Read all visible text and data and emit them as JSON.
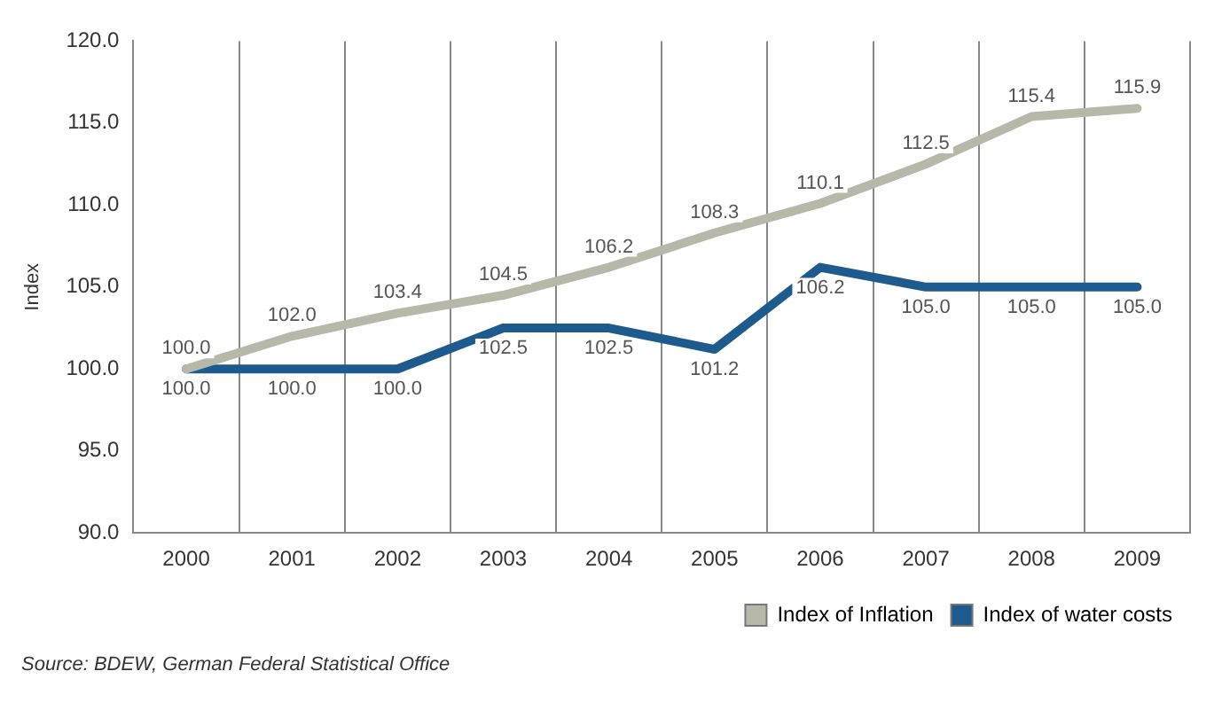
{
  "chart_data": {
    "type": "line",
    "ylabel": "Index",
    "categories": [
      "2000",
      "2001",
      "2002",
      "2003",
      "2004",
      "2005",
      "2006",
      "2007",
      "2008",
      "2009"
    ],
    "series": [
      {
        "name": "Index of Inflation",
        "color": "#b8b8aa",
        "values": [
          100.0,
          102.0,
          103.4,
          104.5,
          106.2,
          108.3,
          110.1,
          112.5,
          115.4,
          115.9
        ],
        "value_labels": [
          "100.0",
          "102.0",
          "103.4",
          "104.5",
          "106.2",
          "108.3",
          "110.1",
          "112.5",
          "115.4",
          "115.9"
        ]
      },
      {
        "name": "Index of water costs",
        "color": "#1d5b8e",
        "values": [
          100.0,
          100.0,
          100.0,
          102.5,
          102.5,
          101.2,
          106.2,
          105.0,
          105.0,
          105.0
        ],
        "value_labels": [
          "100.0",
          "100.0",
          "100.0",
          "102.5",
          "102.5",
          "101.2",
          "106.2",
          "105.0",
          "105.0",
          "105.0"
        ]
      }
    ],
    "ylim": [
      90,
      120
    ],
    "yticks": [
      {
        "value": 90,
        "label": "90.0"
      },
      {
        "value": 95,
        "label": "95.0"
      },
      {
        "value": 100,
        "label": "100.0"
      },
      {
        "value": 105,
        "label": "105.0"
      },
      {
        "value": 110,
        "label": "110.0"
      },
      {
        "value": 115,
        "label": "115.0"
      },
      {
        "value": 120,
        "label": "120.0"
      }
    ],
    "grid": "x",
    "legend": "bottom right",
    "marker": "none",
    "line_style": "solid",
    "annotations": [
      "Source: BDEW, German Federal Statistical Office"
    ]
  }
}
